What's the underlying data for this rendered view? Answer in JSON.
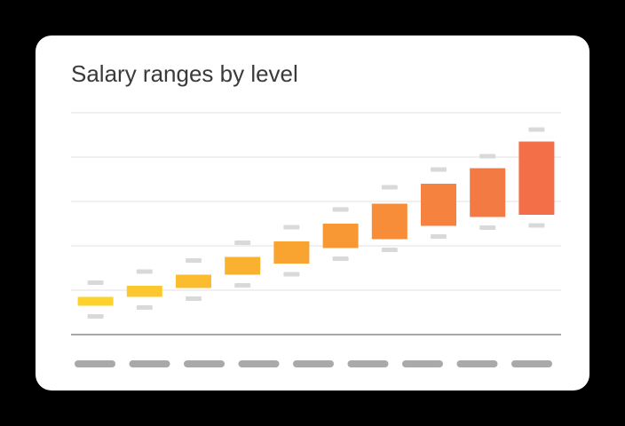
{
  "chart_data": {
    "type": "range",
    "title": "Salary ranges by level",
    "xlabel": "",
    "ylabel": "",
    "ylim": [
      0,
      5
    ],
    "grid": true,
    "legend": "none",
    "categories": [
      "",
      "",
      "",
      "",
      "",
      "",
      "",
      "",
      "",
      ""
    ],
    "series": [
      {
        "low": [
          0.65,
          0.85,
          1.0,
          1.35,
          1.6,
          1.95,
          2.15,
          2.45,
          2.65,
          2.7
        ],
        "q1": [
          0.65,
          0.85,
          1.05,
          1.35,
          1.6,
          1.95,
          2.15,
          2.45,
          2.65,
          2.7
        ],
        "q3": [
          0.85,
          1.1,
          1.35,
          1.75,
          2.1,
          2.5,
          2.95,
          3.4,
          3.75,
          4.35
        ],
        "high": [
          1.05,
          1.3,
          1.55,
          1.95,
          2.3,
          2.7,
          3.2,
          3.6,
          3.9,
          4.5
        ],
        "min": [
          0.45,
          0.65,
          0.85,
          1.15,
          1.4,
          1.75,
          1.95,
          2.25,
          2.45,
          2.5
        ],
        "max": [
          1.05,
          1.3,
          1.55,
          1.95,
          2.3,
          2.7,
          3.2,
          3.6,
          3.9,
          4.5
        ]
      }
    ],
    "colors": [
      "#fdd22b",
      "#fdc82f",
      "#fcbc2f",
      "#fbb130",
      "#f9a431",
      "#f89834",
      "#f78c39",
      "#f6823f",
      "#f47a44",
      "#f26f47"
    ],
    "marker_color": "#d9d9d9",
    "grid_color": "#e6e6e6",
    "axis_color": "#8c8c8c",
    "placeholder_label_color": "#a9a9a9"
  }
}
